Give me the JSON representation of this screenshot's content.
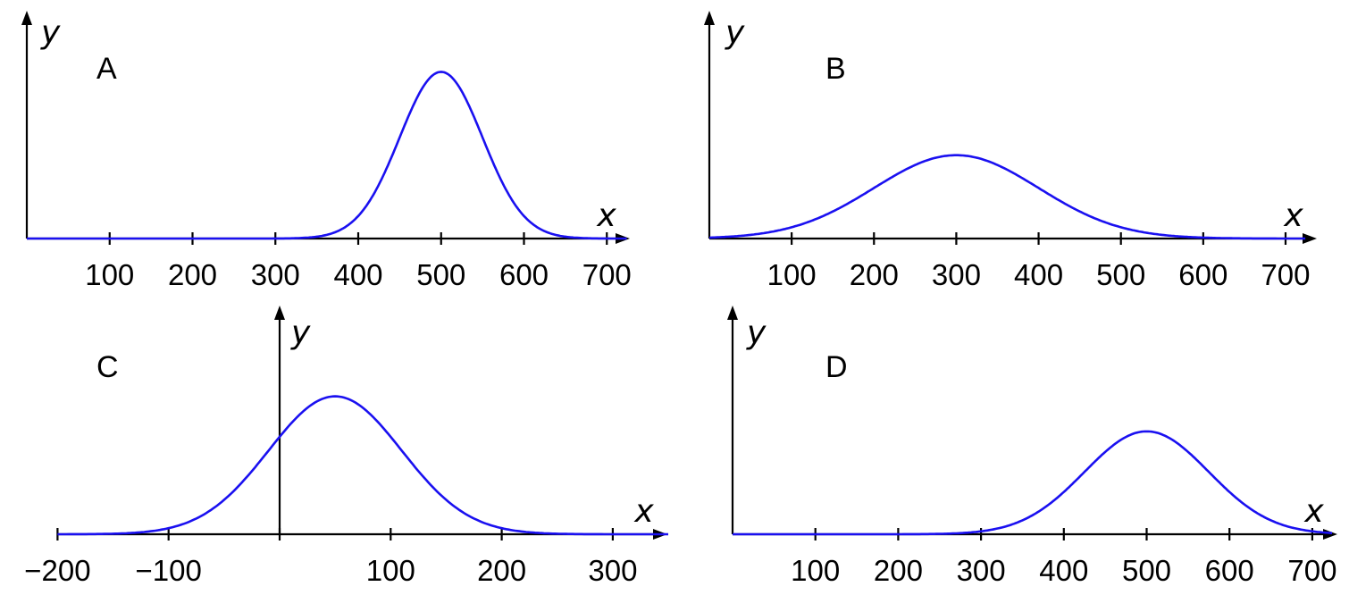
{
  "style": {
    "curve_color": "#1a10f0",
    "axis_color": "#000000"
  },
  "chart_data": [
    {
      "type": "line",
      "panel_label": "A",
      "xlabel": "x",
      "ylabel": "y",
      "xlim": [
        0,
        725
      ],
      "ylim": [
        0,
        1
      ],
      "xticks": [
        100,
        200,
        300,
        400,
        500,
        600,
        700
      ],
      "xtick_labels": [
        "100",
        "200",
        "300",
        "400",
        "500",
        "600",
        "700"
      ],
      "grid": false,
      "series": [
        {
          "curve": "normal",
          "mean": 500,
          "sd": 50,
          "peak": 0.88
        }
      ]
    },
    {
      "type": "line",
      "panel_label": "B",
      "xlabel": "x",
      "ylabel": "y",
      "xlim": [
        0,
        725
      ],
      "ylim": [
        0,
        1
      ],
      "xticks": [
        100,
        200,
        300,
        400,
        500,
        600,
        700
      ],
      "xtick_labels": [
        "100",
        "200",
        "300",
        "400",
        "500",
        "600",
        "700"
      ],
      "grid": false,
      "series": [
        {
          "curve": "normal",
          "mean": 300,
          "sd": 100,
          "peak": 0.44
        }
      ]
    },
    {
      "type": "line",
      "panel_label": "C",
      "xlabel": "x",
      "ylabel": "y",
      "xlim": [
        -200,
        350
      ],
      "ylim": [
        0,
        1
      ],
      "xticks": [
        -200,
        -100,
        0,
        100,
        200,
        300
      ],
      "xtick_labels": [
        "−200",
        "−100",
        "",
        "100",
        "200",
        "300"
      ],
      "grid": false,
      "series": [
        {
          "curve": "normal",
          "mean": 50,
          "sd": 60,
          "peak": 0.63
        }
      ]
    },
    {
      "type": "line",
      "panel_label": "D",
      "xlabel": "x",
      "ylabel": "y",
      "xlim": [
        0,
        725
      ],
      "ylim": [
        0,
        1
      ],
      "xticks": [
        100,
        200,
        300,
        400,
        500,
        600,
        700
      ],
      "xtick_labels": [
        "100",
        "200",
        "300",
        "400",
        "500",
        "600",
        "700"
      ],
      "grid": false,
      "series": [
        {
          "curve": "normal",
          "mean": 500,
          "sd": 75,
          "peak": 0.47
        }
      ]
    }
  ]
}
